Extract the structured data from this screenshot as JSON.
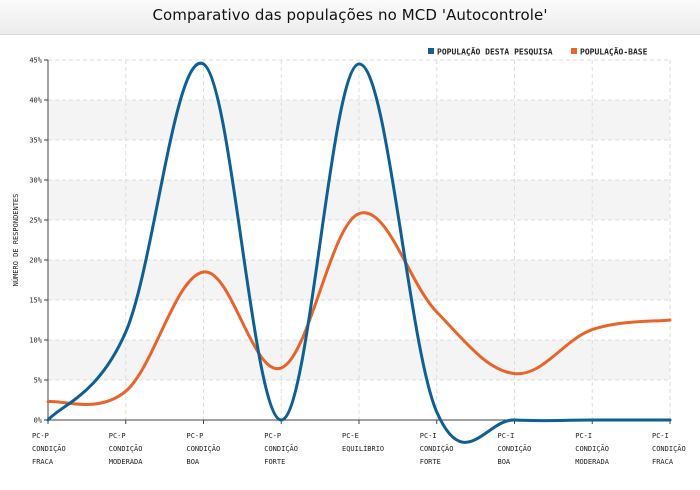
{
  "chart_data": {
    "type": "line",
    "title": "Comparativo das populações no MCD 'Autocontrole'",
    "ylabel": "NÚMERO DE RESPONDENTES",
    "xlabel": "",
    "ylim": [
      0,
      45
    ],
    "yticks": [
      "0%",
      "5%",
      "10%",
      "15%",
      "20%",
      "25%",
      "30%",
      "35%",
      "40%",
      "45%"
    ],
    "legend_position": "top-right",
    "grid": true,
    "categories": [
      [
        "PC-P",
        "CONDIÇÃO",
        "FRACA"
      ],
      [
        "PC-P",
        "CONDIÇÃO",
        "MODERADA"
      ],
      [
        "PC-P",
        "CONDIÇÃO",
        "BOA"
      ],
      [
        "PC-P",
        "CONDIÇÃO",
        "FORTE"
      ],
      [
        "PC-E",
        "EQUILÍBRIO"
      ],
      [
        "PC-I",
        "CONDIÇÃO",
        "FORTE"
      ],
      [
        "PC-I",
        "CONDIÇÃO",
        "BOA"
      ],
      [
        "PC-I",
        "CONDIÇÃO",
        "MODERADA"
      ],
      [
        "PC-I",
        "CONDIÇÃO",
        "FRACA"
      ]
    ],
    "series": [
      {
        "name": "POPULAÇÃO DESTA PESQUISA",
        "color": "#0e5f93",
        "values": [
          0,
          11,
          44.5,
          0,
          44.5,
          1,
          0,
          0,
          0
        ]
      },
      {
        "name": "POPULAÇÃO-BASE",
        "color": "#e8642a",
        "values": [
          2.3,
          3.6,
          18.5,
          6.5,
          25.8,
          13.5,
          5.8,
          11.3,
          12.5
        ]
      }
    ]
  }
}
